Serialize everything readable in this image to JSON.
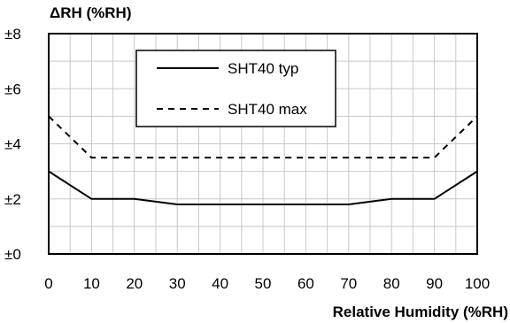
{
  "chart_data": {
    "type": "line",
    "ylabel": "ΔRH (%RH)",
    "xlabel": "Relative Humidity (%RH)",
    "x": [
      0,
      10,
      20,
      30,
      40,
      50,
      60,
      70,
      80,
      90,
      100
    ],
    "series": [
      {
        "name": "SHT40 typ",
        "values": [
          3.0,
          2.0,
          2.0,
          1.8,
          1.8,
          1.8,
          1.8,
          1.8,
          2.0,
          2.0,
          3.0
        ],
        "style": "solid"
      },
      {
        "name": "SHT40 max",
        "values": [
          5.0,
          3.5,
          3.5,
          3.5,
          3.5,
          3.5,
          3.5,
          3.5,
          3.5,
          3.5,
          5.0
        ],
        "style": "dashed"
      }
    ],
    "xlim": [
      0,
      100
    ],
    "ylim": [
      0,
      8
    ],
    "xticks": [
      0,
      10,
      20,
      30,
      40,
      50,
      60,
      70,
      80,
      90,
      100
    ],
    "xtick_labels": [
      "0",
      "10",
      "20",
      "30",
      "40",
      "50",
      "60",
      "70",
      "80",
      "90",
      "100"
    ],
    "yticks": [
      0,
      2,
      4,
      6,
      8
    ],
    "ytick_labels": [
      "±0",
      "±2",
      "±4",
      "±6",
      "±8"
    ],
    "minor_x_step": 5,
    "minor_y_step": 1,
    "grid": true,
    "legend_position": "top-center",
    "colors": {
      "line": "#000000",
      "grid": "#c8c8c8",
      "axis": "#000000"
    }
  }
}
